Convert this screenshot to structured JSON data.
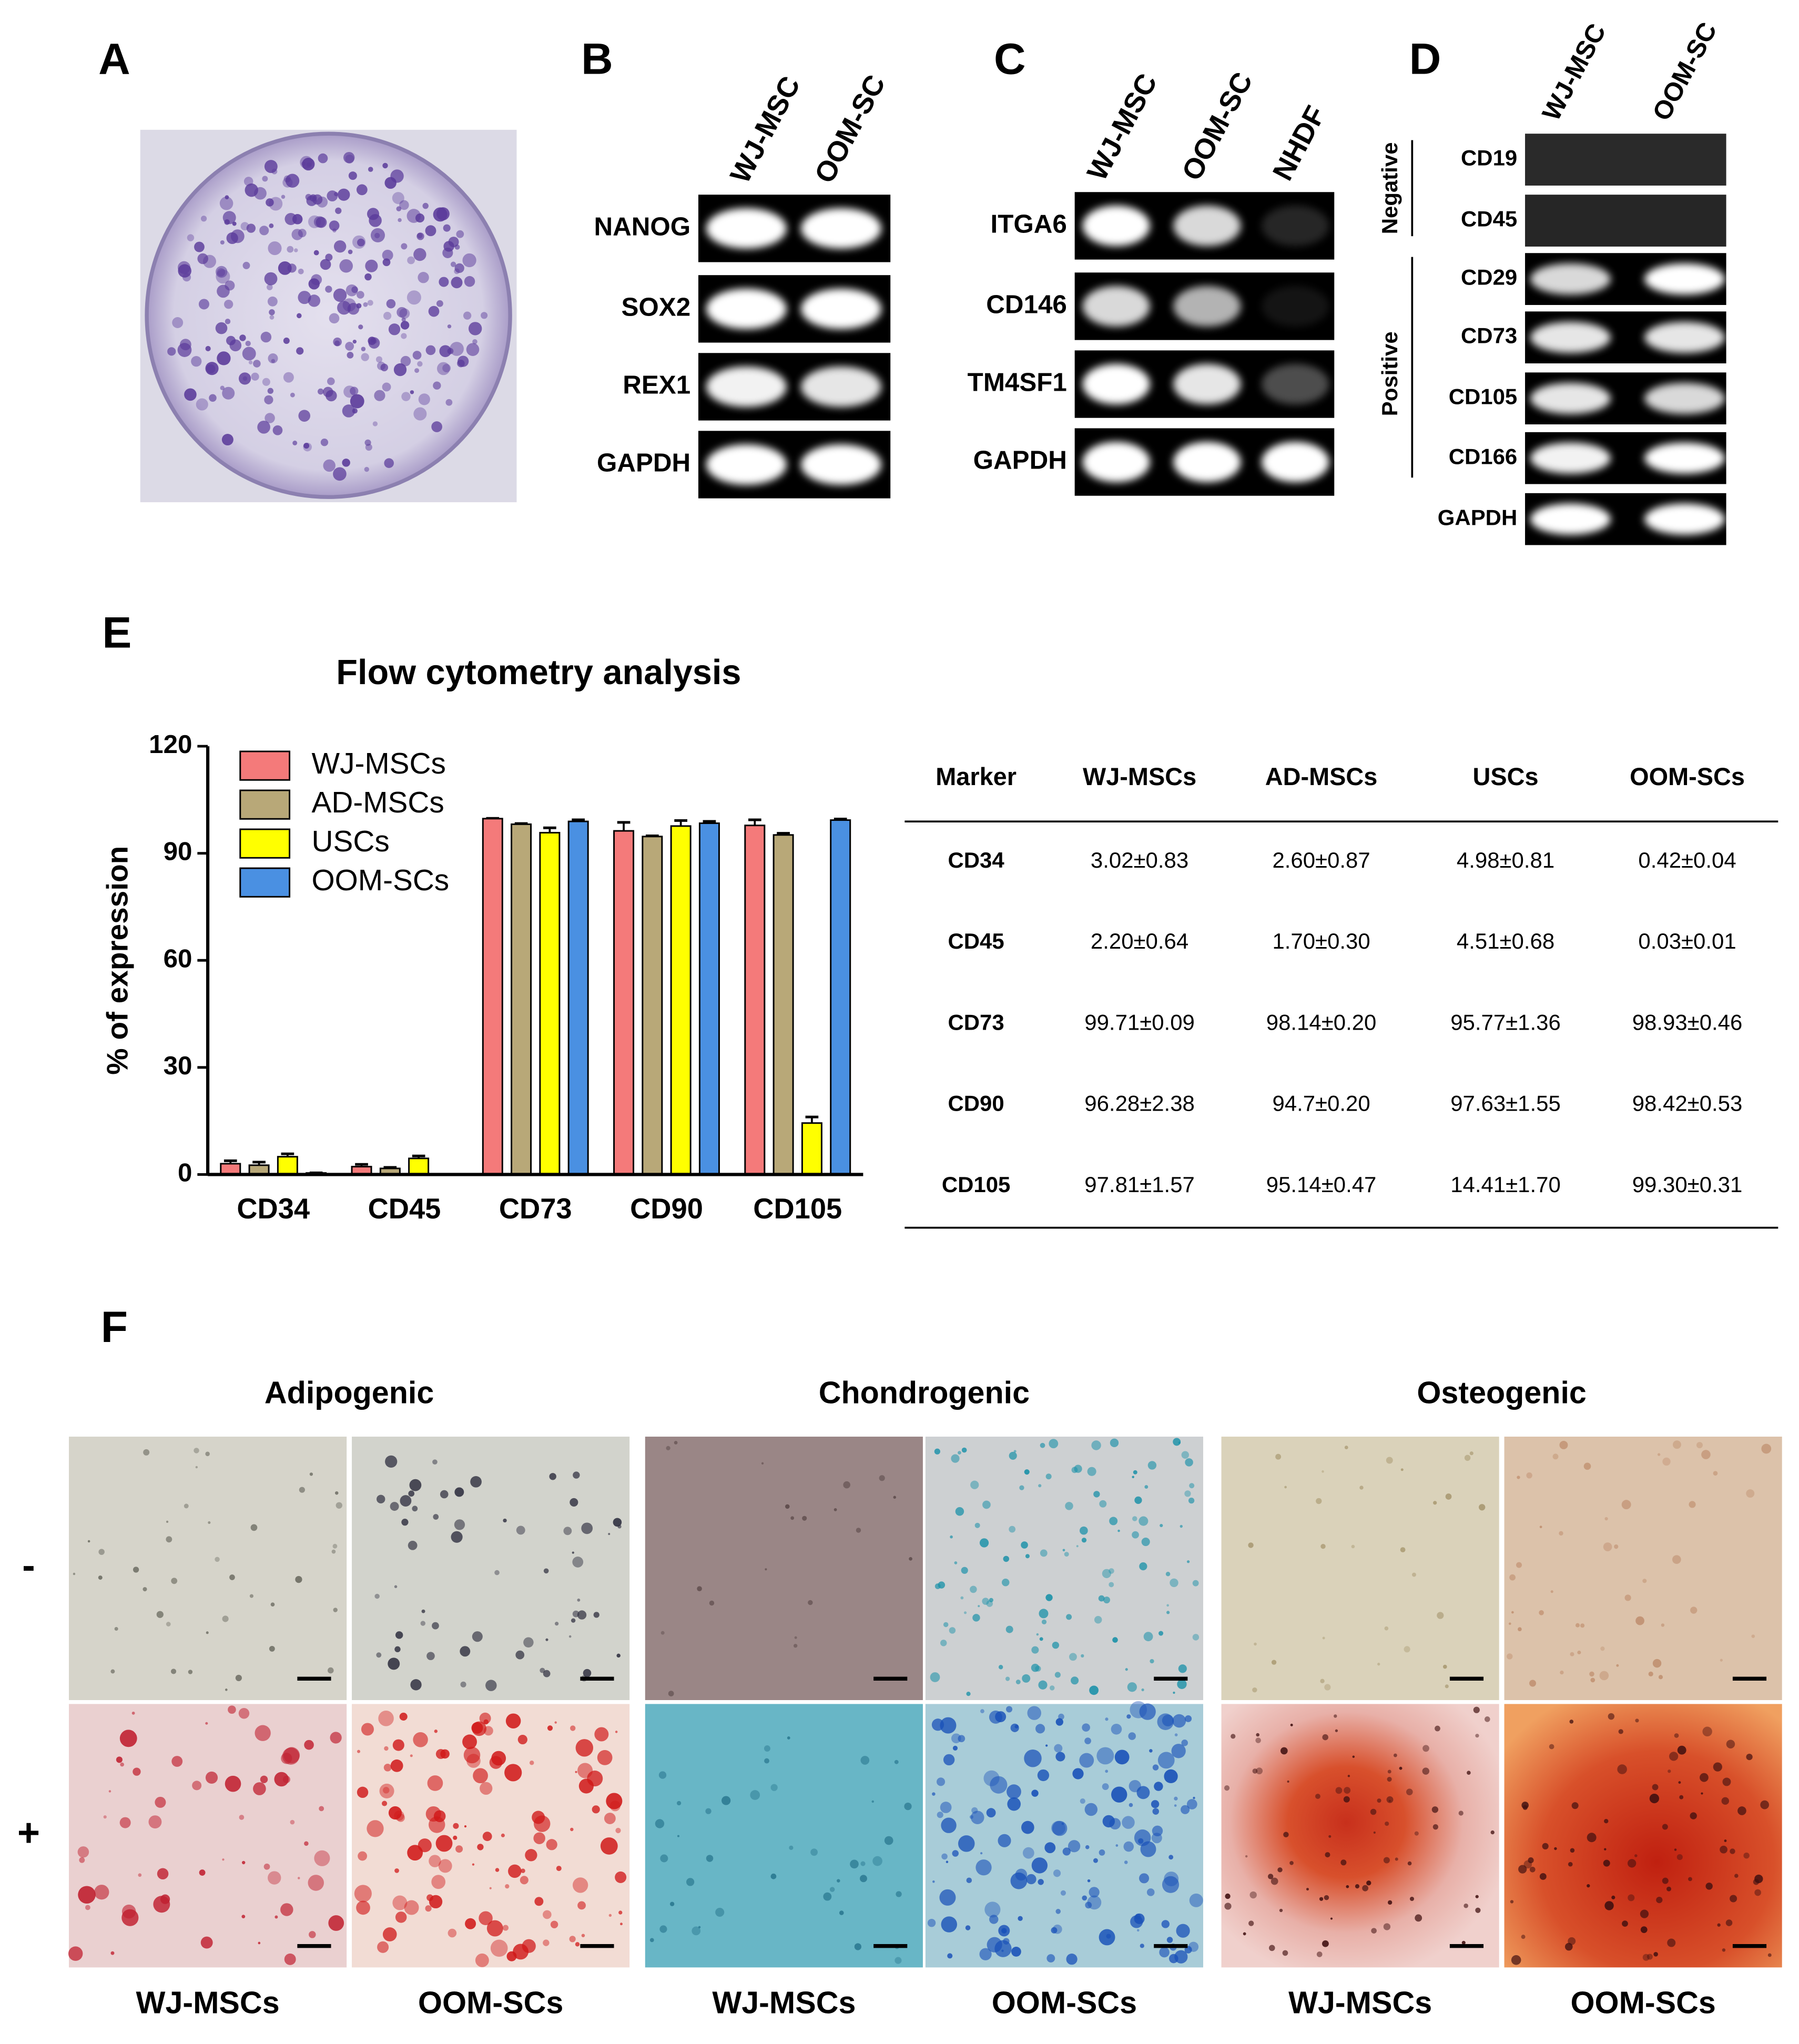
{
  "panel_letters": [
    "A",
    "B",
    "C",
    "D",
    "E",
    "F"
  ],
  "gel_b": {
    "lanes": [
      "WJ-MSC",
      "OOM-SC"
    ],
    "genes": [
      "NANOG",
      "SOX2",
      "REX1",
      "GAPDH"
    ]
  },
  "gel_c": {
    "lanes": [
      "WJ-MSC",
      "OOM-SC",
      "NHDF"
    ],
    "genes": [
      "ITGA6",
      "CD146",
      "TM4SF1",
      "GAPDH"
    ]
  },
  "gel_d": {
    "lanes": [
      "WJ-MSC",
      "OOM-SC"
    ],
    "groups": [
      "Negative",
      "Positive"
    ],
    "genes": [
      "CD19",
      "CD45",
      "CD29",
      "CD73",
      "CD105",
      "CD166",
      "GAPDH"
    ]
  },
  "chart_data": {
    "type": "bar",
    "title": "Flow cytometry analysis",
    "ylabel": "% of expression",
    "categories": [
      "CD34",
      "CD45",
      "CD73",
      "CD90",
      "CD105"
    ],
    "series": [
      {
        "name": "WJ-MSCs",
        "color": "#f47a7a",
        "values": [
          3.02,
          2.2,
          99.71,
          96.28,
          97.81
        ],
        "errors": [
          0.83,
          0.64,
          0.09,
          2.38,
          1.57
        ]
      },
      {
        "name": "AD-MSCs",
        "color": "#b8a878",
        "values": [
          2.6,
          1.7,
          98.14,
          94.7,
          95.14
        ],
        "errors": [
          0.87,
          0.3,
          0.2,
          0.2,
          0.47
        ]
      },
      {
        "name": "USCs",
        "color": "#ffff00",
        "values": [
          4.98,
          4.51,
          95.77,
          97.63,
          14.41
        ],
        "errors": [
          0.81,
          0.68,
          1.36,
          1.55,
          1.7
        ]
      },
      {
        "name": "OOM-SCs",
        "color": "#4a90e2",
        "values": [
          0.42,
          0.03,
          98.93,
          98.42,
          99.3
        ],
        "errors": [
          0.04,
          0.01,
          0.46,
          0.53,
          0.31
        ]
      }
    ],
    "ylim": [
      0,
      120
    ],
    "yticks": [
      0,
      30,
      60,
      90,
      120
    ],
    "legend": "top-left"
  },
  "table": {
    "header": [
      "Marker",
      "WJ-MSCs",
      "AD-MSCs",
      "USCs",
      "OOM-SCs"
    ],
    "rows": [
      [
        "CD34",
        "3.02±0.83",
        "2.60±0.87",
        "4.98±0.81",
        "0.42±0.04"
      ],
      [
        "CD45",
        "2.20±0.64",
        "1.70±0.30",
        "4.51±0.68",
        "0.03±0.01"
      ],
      [
        "CD73",
        "99.71±0.09",
        "98.14±0.20",
        "95.77±1.36",
        "98.93±0.46"
      ],
      [
        "CD90",
        "96.28±2.38",
        "94.7±0.20",
        "97.63±1.55",
        "98.42±0.53"
      ],
      [
        "CD105",
        "97.81±1.57",
        "95.14±0.47",
        "14.41±1.70",
        "99.30±0.31"
      ]
    ]
  },
  "differentiation": {
    "conditions": [
      "Adipogenic",
      "Chondrogenic",
      "Osteogenic"
    ],
    "treatments": [
      "-",
      "+"
    ],
    "cells": [
      "WJ-MSCs",
      "OOM-SCs"
    ]
  }
}
